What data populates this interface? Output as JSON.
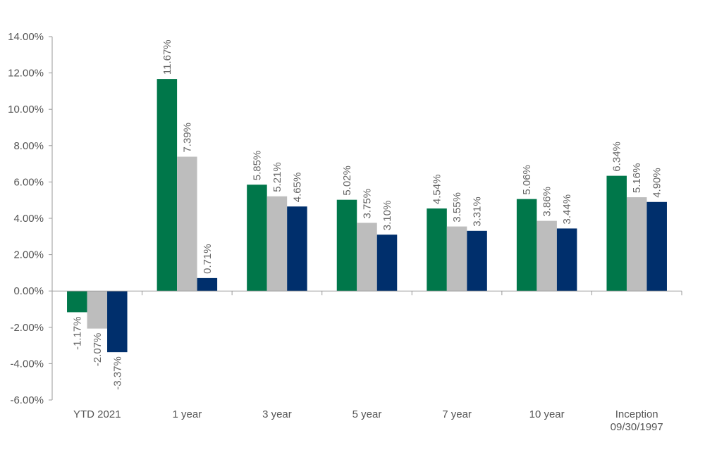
{
  "chart_data": {
    "type": "bar",
    "categories": [
      [
        "YTD 2021"
      ],
      [
        "1 year"
      ],
      [
        "3 year"
      ],
      [
        "5 year"
      ],
      [
        "7 year"
      ],
      [
        "10 year"
      ],
      [
        "Inception",
        "09/30/1997"
      ]
    ],
    "series": [
      {
        "color": "#00774a",
        "values": [
          -1.17,
          11.67,
          5.85,
          5.02,
          4.54,
          5.06,
          6.34
        ],
        "labels": [
          "-1.17%",
          "11.67%",
          "5.85%",
          "5.02%",
          "4.54%",
          "5.06%",
          "6.34%"
        ]
      },
      {
        "color": "#bdbdbd",
        "values": [
          -2.07,
          7.39,
          5.21,
          3.75,
          3.55,
          3.86,
          5.16
        ],
        "labels": [
          "-2.07%",
          "7.39%",
          "5.21%",
          "3.75%",
          "3.55%",
          "3.86%",
          "5.16%"
        ]
      },
      {
        "color": "#002f6c",
        "values": [
          -3.37,
          0.71,
          4.65,
          3.1,
          3.31,
          3.44,
          4.9
        ],
        "labels": [
          "-3.37%",
          "0.71%",
          "4.65%",
          "3.10%",
          "3.31%",
          "3.44%",
          "4.90%"
        ]
      }
    ],
    "yticks": [
      {
        "value": 14,
        "label": "14.00%"
      },
      {
        "value": 12,
        "label": "12.00%"
      },
      {
        "value": 10,
        "label": "10.00%"
      },
      {
        "value": 8,
        "label": "8.00%"
      },
      {
        "value": 6,
        "label": "6.00%"
      },
      {
        "value": 4,
        "label": "4.00%"
      },
      {
        "value": 2,
        "label": "2.00%"
      },
      {
        "value": 0,
        "label": "0.00%"
      },
      {
        "value": -2,
        "label": "-2.00%"
      },
      {
        "value": -4,
        "label": "-4.00%"
      },
      {
        "value": -6,
        "label": "-6.00%"
      }
    ],
    "ylim": [
      -6,
      14
    ],
    "title": "",
    "xlabel": "",
    "ylabel": "",
    "grid": false,
    "legend": "none",
    "axis_color": "#999999"
  }
}
